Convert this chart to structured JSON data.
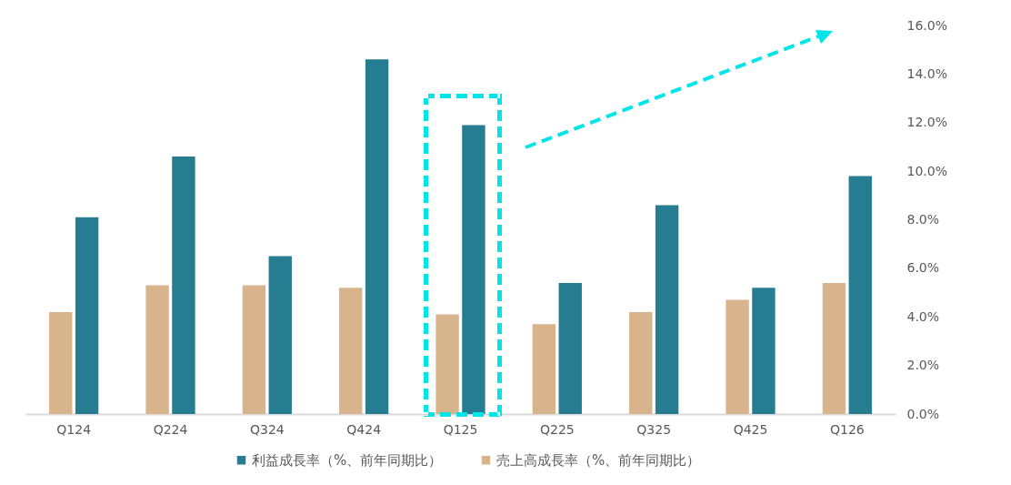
{
  "chart_data": {
    "type": "bar",
    "categories": [
      "Q124",
      "Q224",
      "Q324",
      "Q424",
      "Q125",
      "Q225",
      "Q325",
      "Q425",
      "Q126"
    ],
    "series": [
      {
        "name": "利益成長率（%、前年同期比）",
        "color": "#267c90",
        "values": [
          8.1,
          10.6,
          6.5,
          14.6,
          11.9,
          5.4,
          8.6,
          5.2,
          9.8
        ]
      },
      {
        "name": "売上高成長率（%、前年同期比）",
        "color": "#d7b48b",
        "values": [
          4.2,
          5.3,
          5.3,
          5.2,
          4.1,
          3.7,
          4.2,
          4.7,
          5.4
        ]
      }
    ],
    "ylim": [
      0,
      16
    ],
    "yticks": [
      {
        "value": 0,
        "label": "0.0%"
      },
      {
        "value": 2,
        "label": "2.0%"
      },
      {
        "value": 4,
        "label": "4.0%"
      },
      {
        "value": 6,
        "label": "6.0%"
      },
      {
        "value": 8,
        "label": "8.0%"
      },
      {
        "value": 10,
        "label": "10.0%"
      },
      {
        "value": 12,
        "label": "12.0%"
      },
      {
        "value": 14,
        "label": "14.0%"
      },
      {
        "value": 16,
        "label": "16.0%"
      }
    ],
    "grid": false,
    "legend": "bottom"
  }
}
